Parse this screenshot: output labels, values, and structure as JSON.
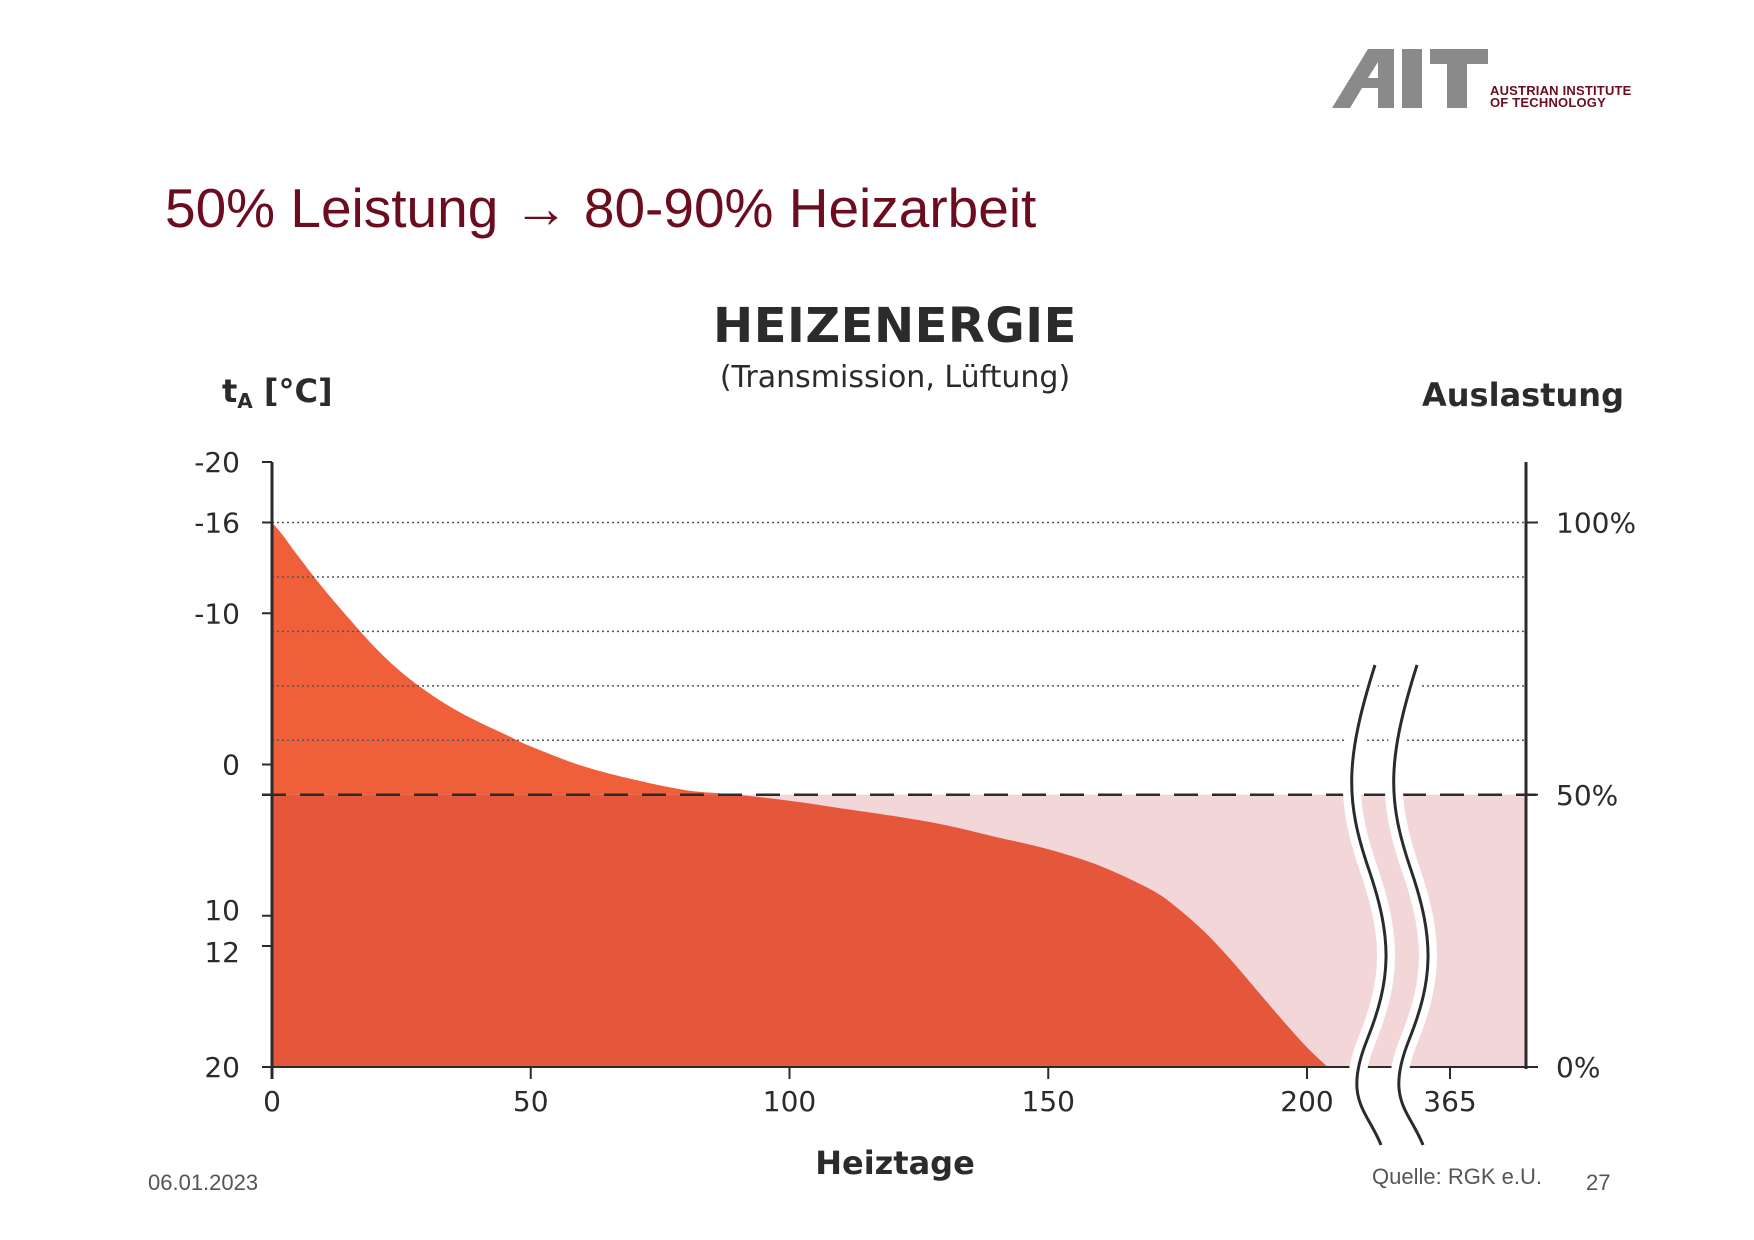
{
  "logo": {
    "mark": "AIT",
    "subtitle": "AUSTRIAN INSTITUTE\nOF TECHNOLOGY"
  },
  "slide": {
    "title": "50% Leistung → 80-90% Heizarbeit"
  },
  "footer": {
    "date": "06.01.2023",
    "source": "Quelle: RGK e.U.",
    "page": "27"
  },
  "colors": {
    "title": "#6b0d1e",
    "fill_upper": "#ee5f3a",
    "fill_lower": "#e4573a",
    "fill_light": "#f2d6d8",
    "axis": "#2b2b2b"
  },
  "chart_data": {
    "type": "area",
    "title": "HEIZENERGIE",
    "subtitle": "(Transmission, Lüftung)",
    "ylabel_left": "tA [°C]",
    "ylabel_left_main": "t",
    "ylabel_left_sub": "A",
    "ylabel_left_unit": " [°C]",
    "ylabel_right": "Auslastung",
    "xlabel": "Heiztage",
    "x_ticks": [
      0,
      50,
      100,
      150,
      200
    ],
    "x_tick_break": "365",
    "x_break_after": 200,
    "y_left_ticks": [
      -20,
      -16,
      -10,
      0,
      10,
      12,
      20
    ],
    "y_left_range": [
      -20,
      20
    ],
    "y_left_reversed": true,
    "y_right_ticks": [
      {
        "label": "100%",
        "temp": -16
      },
      {
        "label": "50%",
        "temp": 2
      },
      {
        "label": "0%",
        "temp": 20
      }
    ],
    "gridlines_temp": [
      -16,
      -12.4,
      -8.8,
      -5.2,
      -1.6
    ],
    "threshold_temp": 2,
    "threshold_label": "50%",
    "series": [
      {
        "x": [
          0,
          2,
          5,
          10,
          15,
          20,
          25,
          30,
          35,
          40,
          45,
          50,
          60,
          70,
          80,
          90,
          100,
          110,
          120,
          130,
          140,
          150,
          160,
          170,
          175,
          180,
          185,
          190,
          195,
          200,
          204
        ],
        "temp": [
          -16,
          -15.2,
          -13.8,
          -11.6,
          -9.6,
          -7.7,
          -6.1,
          -4.8,
          -3.7,
          -2.8,
          -2.0,
          -1.2,
          0.1,
          1.0,
          1.7,
          2.0,
          2.4,
          2.9,
          3.4,
          4.0,
          4.8,
          5.6,
          6.7,
          8.3,
          9.5,
          11.0,
          12.8,
          14.8,
          16.8,
          18.7,
          20
        ]
      }
    ],
    "heating_limit_temp": 20,
    "heating_days": 204
  }
}
